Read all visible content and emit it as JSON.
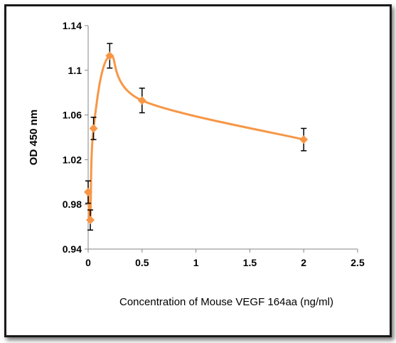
{
  "chart_data": {
    "type": "scatter",
    "title": "",
    "xlabel": "Concentration of Mouse VEGF 164aa (ng/ml)",
    "ylabel": "OD 450 nm",
    "xlim": [
      0,
      2.5
    ],
    "ylim": [
      0.94,
      1.14
    ],
    "x_ticks": [
      "0",
      "0.5",
      "1",
      "1.5",
      "2",
      "2.5"
    ],
    "y_ticks": [
      "0.94",
      "0.98",
      "1.02",
      "1.06",
      "1.1",
      "1.14"
    ],
    "grid": false,
    "legend": "none",
    "series_color": "#f79646",
    "smoothed_line": true,
    "series": [
      {
        "x": [
          0,
          0.02,
          0.05,
          0.2,
          0.5,
          2
        ],
        "y": [
          0.991,
          0.966,
          1.048,
          1.113,
          1.073,
          1.038
        ],
        "error": [
          0.01,
          0.009,
          0.01,
          0.011,
          0.011,
          0.01
        ]
      }
    ]
  }
}
